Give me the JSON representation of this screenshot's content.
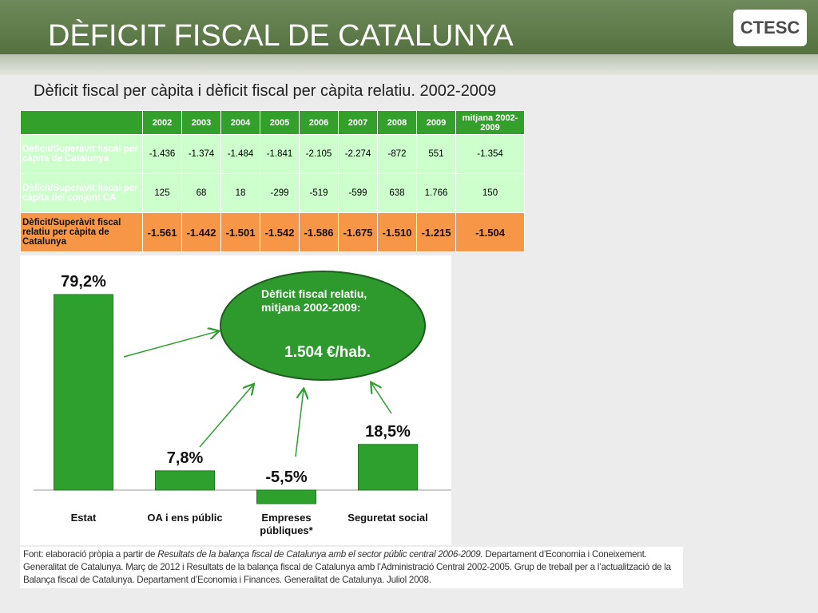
{
  "slide": {
    "title": "DÈFICIT FISCAL DE CATALUNYA",
    "logo": "CTESC",
    "subtitle": "Dèficit fiscal per càpita i dèficit fiscal per càpita relatiu. 2002-2009"
  },
  "table": {
    "header": [
      "",
      "2002",
      "2003",
      "2004",
      "2005",
      "2006",
      "2007",
      "2008",
      "2009",
      "mitjana 2002-2009"
    ],
    "rows": [
      [
        "Dèficit/Superàvit fiscal per càpita de Catalunya",
        "-1.436",
        "-1.374",
        "-1.484",
        "-1.841",
        "-2.105",
        "-2.274",
        "-872",
        "551",
        "-1.354"
      ],
      [
        "Dèficit/Superàvit fiscal per càpita del conjunt CA",
        "125",
        "68",
        "18",
        "-299",
        "-519",
        "-599",
        "638",
        "1.766",
        "150"
      ],
      [
        "Dèficit/Superàvit fiscal relatiu per càpita de Catalunya",
        "-1.561",
        "-1.442",
        "-1.501",
        "-1.542",
        "-1.586",
        "-1.675",
        "-1.510",
        "-1.215",
        "-1.504"
      ]
    ]
  },
  "chart_data": {
    "type": "bar",
    "categories": [
      "Estat",
      "OA i ens públic",
      "Empreses públiques*",
      "Seguretat social"
    ],
    "values": [
      79.2,
      7.8,
      -5.5,
      18.5
    ],
    "value_labels": [
      "79,2%",
      "7,8%",
      "-5,5%",
      "18,5%"
    ],
    "color": "#2ea02e",
    "annotation": {
      "text": "Dèficit fiscal relatiu, mitjana 2002-2009:",
      "value": "1.504 €/hab."
    }
  },
  "source": {
    "lead": "Font: elaboració pròpia a partir de ",
    "italic": "Resultats de la balança fiscal de Catalunya amb el sector públic central 2006-2009.",
    "rest": " Departament d’Economia i Coneixement. Generalitat de Catalunya. Març de 2012 i Resultats de la balança fiscal de Catalunya amb l’Administració Central 2002-2005. Grup de treball per a l’actualització de la Balança fiscal de Catalunya. Departament d’Economia i Finances. Generalitat de Catalunya. Juliol 2008."
  }
}
